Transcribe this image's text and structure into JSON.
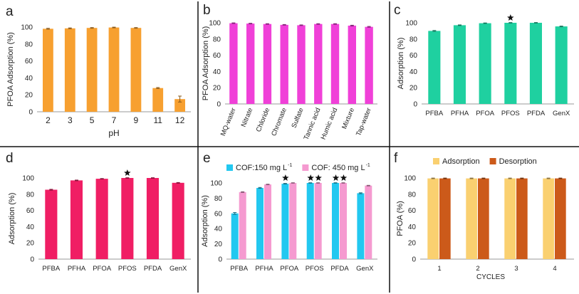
{
  "chart_data": [
    {
      "type": "bar",
      "panel_label": "a",
      "categories": [
        "2",
        "3",
        "5",
        "7",
        "9",
        "11",
        "12"
      ],
      "values": [
        98,
        98.5,
        99,
        99.5,
        99,
        28,
        15
      ],
      "errors": [
        0.5,
        0.5,
        0.4,
        0.4,
        0.4,
        0.6,
        3.5
      ],
      "color": "#F7A030",
      "xlabel": "pH",
      "ylabel": "PFOA Adsorption (%)",
      "ylim": [
        0,
        100
      ],
      "yticks": [
        "0",
        "20",
        "40",
        "60",
        "80",
        "100"
      ]
    },
    {
      "type": "bar",
      "panel_label": "b",
      "categories": [
        "MQ-water",
        "Nitrate",
        "Chloride",
        "Chromate",
        "Sulfate",
        "Tannic acid",
        "Humic acid",
        "Mixture",
        "Tap-water"
      ],
      "values": [
        99.5,
        99,
        98.5,
        97.5,
        97,
        98.5,
        98.5,
        96.5,
        95
      ],
      "errors": [
        0.4,
        0.4,
        0.4,
        0.4,
        0.4,
        0.4,
        0.4,
        0.5,
        0.5
      ],
      "color": "#F040D8",
      "xlabel": "",
      "ylabel": "PFOA Adsorption (%)",
      "ylim": [
        0,
        100
      ],
      "yticks": [
        "0",
        "20",
        "40",
        "60",
        "80",
        "100"
      ]
    },
    {
      "type": "bar",
      "panel_label": "c",
      "categories": [
        "PFBA",
        "PFHA",
        "PFOA",
        "PFOS",
        "PFDA",
        "GenX"
      ],
      "values": [
        90,
        97,
        99.5,
        100,
        100,
        95.5
      ],
      "errors": [
        0.5,
        0.4,
        0.3,
        0.3,
        0.3,
        0.4
      ],
      "stars": [
        false,
        false,
        false,
        true,
        false,
        false
      ],
      "color": "#1FD0A0",
      "xlabel": "",
      "ylabel": "Adsorption (%)",
      "ylim": [
        0,
        100
      ],
      "yticks": [
        "0",
        "20",
        "40",
        "60",
        "80",
        "100"
      ]
    },
    {
      "type": "bar",
      "panel_label": "d",
      "categories": [
        "PFBA",
        "PFHA",
        "PFOA",
        "PFOS",
        "PFDA",
        "GenX"
      ],
      "values": [
        85.5,
        97,
        99,
        100,
        100,
        94
      ],
      "errors": [
        0.5,
        0.4,
        0.3,
        0.3,
        0.3,
        0.4
      ],
      "stars": [
        false,
        false,
        false,
        true,
        false,
        false
      ],
      "color": "#F01E64",
      "xlabel": "",
      "ylabel": "Adsorption (%)",
      "ylim": [
        0,
        100
      ],
      "yticks": [
        "0",
        "20",
        "40",
        "60",
        "80",
        "100"
      ]
    },
    {
      "type": "bar",
      "panel_label": "e",
      "categories": [
        "PFBA",
        "PFHA",
        "PFOA",
        "PFOS",
        "PFDA",
        "GenX"
      ],
      "series": [
        {
          "name": "COF:150  mg L",
          "sup": "-1",
          "color": "#22C8F0",
          "values": [
            60,
            93.5,
            99,
            100,
            100,
            86.5
          ],
          "errors": [
            1.2,
            0.6,
            0.4,
            0.3,
            0.3,
            0.6
          ],
          "stars": [
            false,
            false,
            true,
            true,
            true,
            false
          ]
        },
        {
          "name": "COF: 450  mg L",
          "sup": "-1",
          "color": "#F59AD0",
          "values": [
            88,
            98,
            100,
            100,
            100,
            96.5
          ],
          "errors": [
            0.5,
            0.4,
            0.3,
            0.3,
            0.3,
            0.4
          ],
          "stars": [
            false,
            false,
            false,
            true,
            true,
            false
          ]
        }
      ],
      "xlabel": "",
      "ylabel": "Adsorption (%)",
      "ylim": [
        0,
        100
      ],
      "yticks": [
        "0",
        "20",
        "40",
        "60",
        "80",
        "100"
      ]
    },
    {
      "type": "bar",
      "panel_label": "f",
      "categories": [
        "1",
        "2",
        "3",
        "4"
      ],
      "series": [
        {
          "name": "Adsorption",
          "color": "#FAD070",
          "values": [
            99.5,
            99.5,
            99.5,
            99.5
          ],
          "errors": [
            0.4,
            0.4,
            0.4,
            0.4
          ]
        },
        {
          "name": "Desorption",
          "color": "#CC5A1A",
          "values": [
            99.5,
            99.5,
            99.5,
            99.5
          ],
          "errors": [
            0.4,
            0.4,
            0.4,
            0.4
          ]
        }
      ],
      "xlabel": "CYCLES",
      "ylabel": "PFOA (%)",
      "ylim": [
        0,
        100
      ],
      "yticks": [
        "0",
        "20",
        "40",
        "60",
        "80",
        "100"
      ]
    }
  ]
}
